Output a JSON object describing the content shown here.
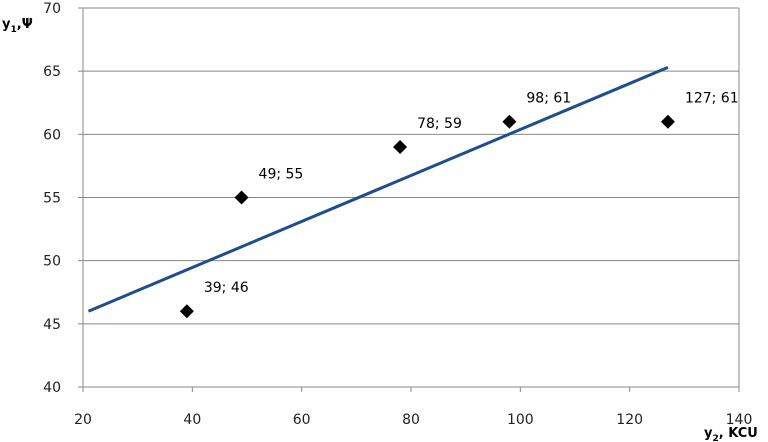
{
  "chart_data": {
    "type": "scatter",
    "xlabel": "y",
    "xlabel_sub": "2",
    "xlabel_suffix": ", KCU",
    "ylabel": "y",
    "ylabel_sub": "1",
    "ylabel_suffix": ",Ψ",
    "xlim": [
      20,
      140
    ],
    "ylim": [
      40,
      70
    ],
    "xticks": [
      20,
      40,
      60,
      80,
      100,
      120,
      140
    ],
    "yticks": [
      40,
      45,
      50,
      55,
      60,
      65,
      70
    ],
    "grid": "horizontal",
    "points": [
      {
        "x": 39,
        "y": 46,
        "label": "39; 46"
      },
      {
        "x": 49,
        "y": 55,
        "label": "49; 55"
      },
      {
        "x": 78,
        "y": 59,
        "label": "78; 59"
      },
      {
        "x": 98,
        "y": 61,
        "label": "98; 61"
      },
      {
        "x": 127,
        "y": 61,
        "label": "127; 61"
      }
    ],
    "trendline": {
      "x": [
        21,
        127
      ],
      "y": [
        46,
        65.3
      ]
    },
    "colors": {
      "trendline": "#1f4e8c",
      "marker": "#000000",
      "grid": "#888888",
      "axis": "#888888"
    }
  }
}
